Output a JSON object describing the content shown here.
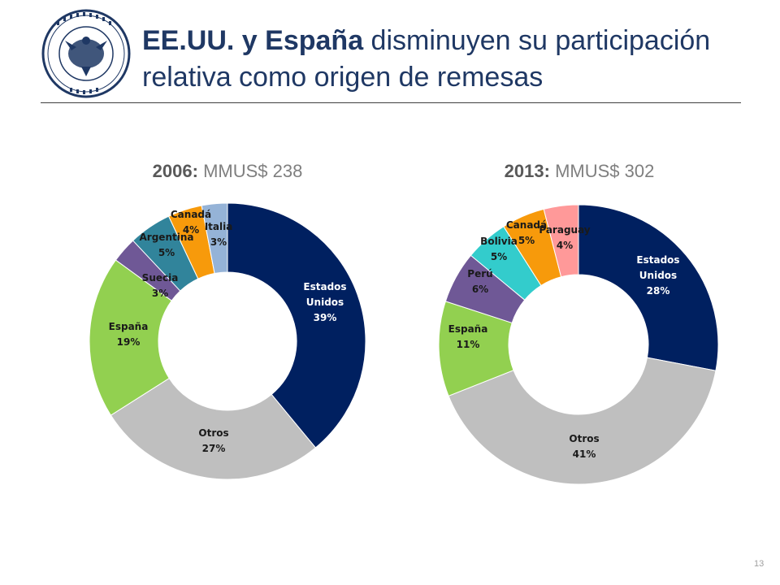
{
  "header": {
    "title_bold": "EE.UU. y España",
    "title_rest": " disminuyen su participación relativa como origen de remesas"
  },
  "logo": {
    "name": "banco-central-de-chile-seal",
    "text": "BANCO CENTRAL DE CHILE"
  },
  "colors": {
    "estados_unidos": "#002060",
    "otros": "#bfbfbf",
    "espana": "#92d050",
    "suecia": "#6f5896",
    "argentina": "#31849b",
    "canada": "#f79a0b",
    "italia": "#95b3d7",
    "peru": "#6f5896",
    "bolivia": "#33cccc",
    "paraguay": "#ff9999"
  },
  "chart_data": [
    {
      "type": "pie",
      "variant": "donut",
      "title_year": "2006:",
      "title_amount": "MMUS$ 238",
      "slices": [
        {
          "label": "Estados Unidos",
          "label_lines": [
            "Estados",
            "Unidos"
          ],
          "value": 39,
          "value_label": "39%",
          "color": "#002060"
        },
        {
          "label": "Otros",
          "label_lines": [
            "Otros"
          ],
          "value": 27,
          "value_label": "27%",
          "color": "#bfbfbf"
        },
        {
          "label": "España",
          "label_lines": [
            "España"
          ],
          "value": 19,
          "value_label": "19%",
          "color": "#92d050"
        },
        {
          "label": "Suecia",
          "label_lines": [
            "Suecia"
          ],
          "value": 3,
          "value_label": "3%",
          "color": "#6f5896"
        },
        {
          "label": "Argentina",
          "label_lines": [
            "Argentina"
          ],
          "value": 5,
          "value_label": "5%",
          "color": "#31849b"
        },
        {
          "label": "Canadá",
          "label_lines": [
            "Canadá"
          ],
          "value": 4,
          "value_label": "4%",
          "color": "#f79a0b"
        },
        {
          "label": "Italia",
          "label_lines": [
            "Italia"
          ],
          "value": 3,
          "value_label": "3%",
          "color": "#95b3d7"
        }
      ]
    },
    {
      "type": "pie",
      "variant": "donut",
      "title_year": "2013:",
      "title_amount": "MMUS$ 302",
      "slices": [
        {
          "label": "Estados Unidos",
          "label_lines": [
            "Estados",
            "Unidos"
          ],
          "value": 28,
          "value_label": "28%",
          "color": "#002060"
        },
        {
          "label": "Otros",
          "label_lines": [
            "Otros"
          ],
          "value": 41,
          "value_label": "41%",
          "color": "#bfbfbf"
        },
        {
          "label": "España",
          "label_lines": [
            "España"
          ],
          "value": 11,
          "value_label": "11%",
          "color": "#92d050"
        },
        {
          "label": "Perú",
          "label_lines": [
            "Perú"
          ],
          "value": 6,
          "value_label": "6%",
          "color": "#6f5896"
        },
        {
          "label": "Bolivia",
          "label_lines": [
            "Bolivia"
          ],
          "value": 5,
          "value_label": "5%",
          "color": "#33cccc"
        },
        {
          "label": "Canadá",
          "label_lines": [
            "Canadá"
          ],
          "value": 5,
          "value_label": "5%",
          "color": "#f79a0b"
        },
        {
          "label": "Paraguay",
          "label_lines": [
            "Paraguay"
          ],
          "value": 4,
          "value_label": "4%",
          "color": "#ff9999"
        }
      ]
    }
  ],
  "footer": {
    "page_number": "13"
  }
}
